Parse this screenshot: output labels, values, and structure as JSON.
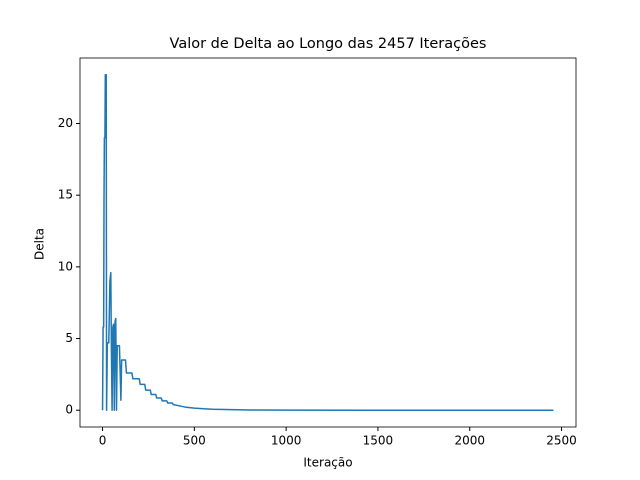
{
  "chart_data": {
    "type": "line",
    "title": "Valor de Delta ao Longo das 2457 Iterações",
    "x_label": "Iteração",
    "y_label": "Delta",
    "x": [
      0,
      3,
      6,
      8,
      10,
      13,
      15,
      20,
      22,
      26,
      34,
      40,
      45,
      48,
      52,
      56,
      60,
      64,
      68,
      72,
      76,
      80,
      84,
      88,
      92,
      100,
      104,
      108,
      125,
      130,
      160,
      165,
      200,
      205,
      230,
      235,
      260,
      265,
      290,
      295,
      320,
      325,
      350,
      355,
      380,
      385,
      420,
      450,
      500,
      550,
      600,
      700,
      800,
      1000,
      1500,
      2000,
      2456
    ],
    "series": [
      {
        "name": "Delta",
        "color": "#1f77b4",
        "values": [
          0,
          5.8,
          5.8,
          14.6,
          19,
          19,
          23.4,
          23.4,
          0,
          4.7,
          4.7,
          9.0,
          9.6,
          4.5,
          0,
          5.8,
          6.0,
          0,
          6.2,
          6.4,
          0,
          4.5,
          4.5,
          4.5,
          4.5,
          0.7,
          3.5,
          3.5,
          3.5,
          2.6,
          2.6,
          2.2,
          2.2,
          1.8,
          1.8,
          1.4,
          1.4,
          1.1,
          1.1,
          0.85,
          0.85,
          0.65,
          0.65,
          0.5,
          0.5,
          0.4,
          0.3,
          0.22,
          0.15,
          0.1,
          0.07,
          0.04,
          0.02,
          0.01,
          0,
          0,
          0
        ]
      }
    ],
    "xlim": [
      -122.8,
      2578.8
    ],
    "ylim": [
      -1.17,
      24.57
    ],
    "xticks": [
      0,
      500,
      1000,
      1500,
      2000,
      2500
    ],
    "yticks": [
      0,
      5,
      10,
      15,
      20
    ]
  }
}
